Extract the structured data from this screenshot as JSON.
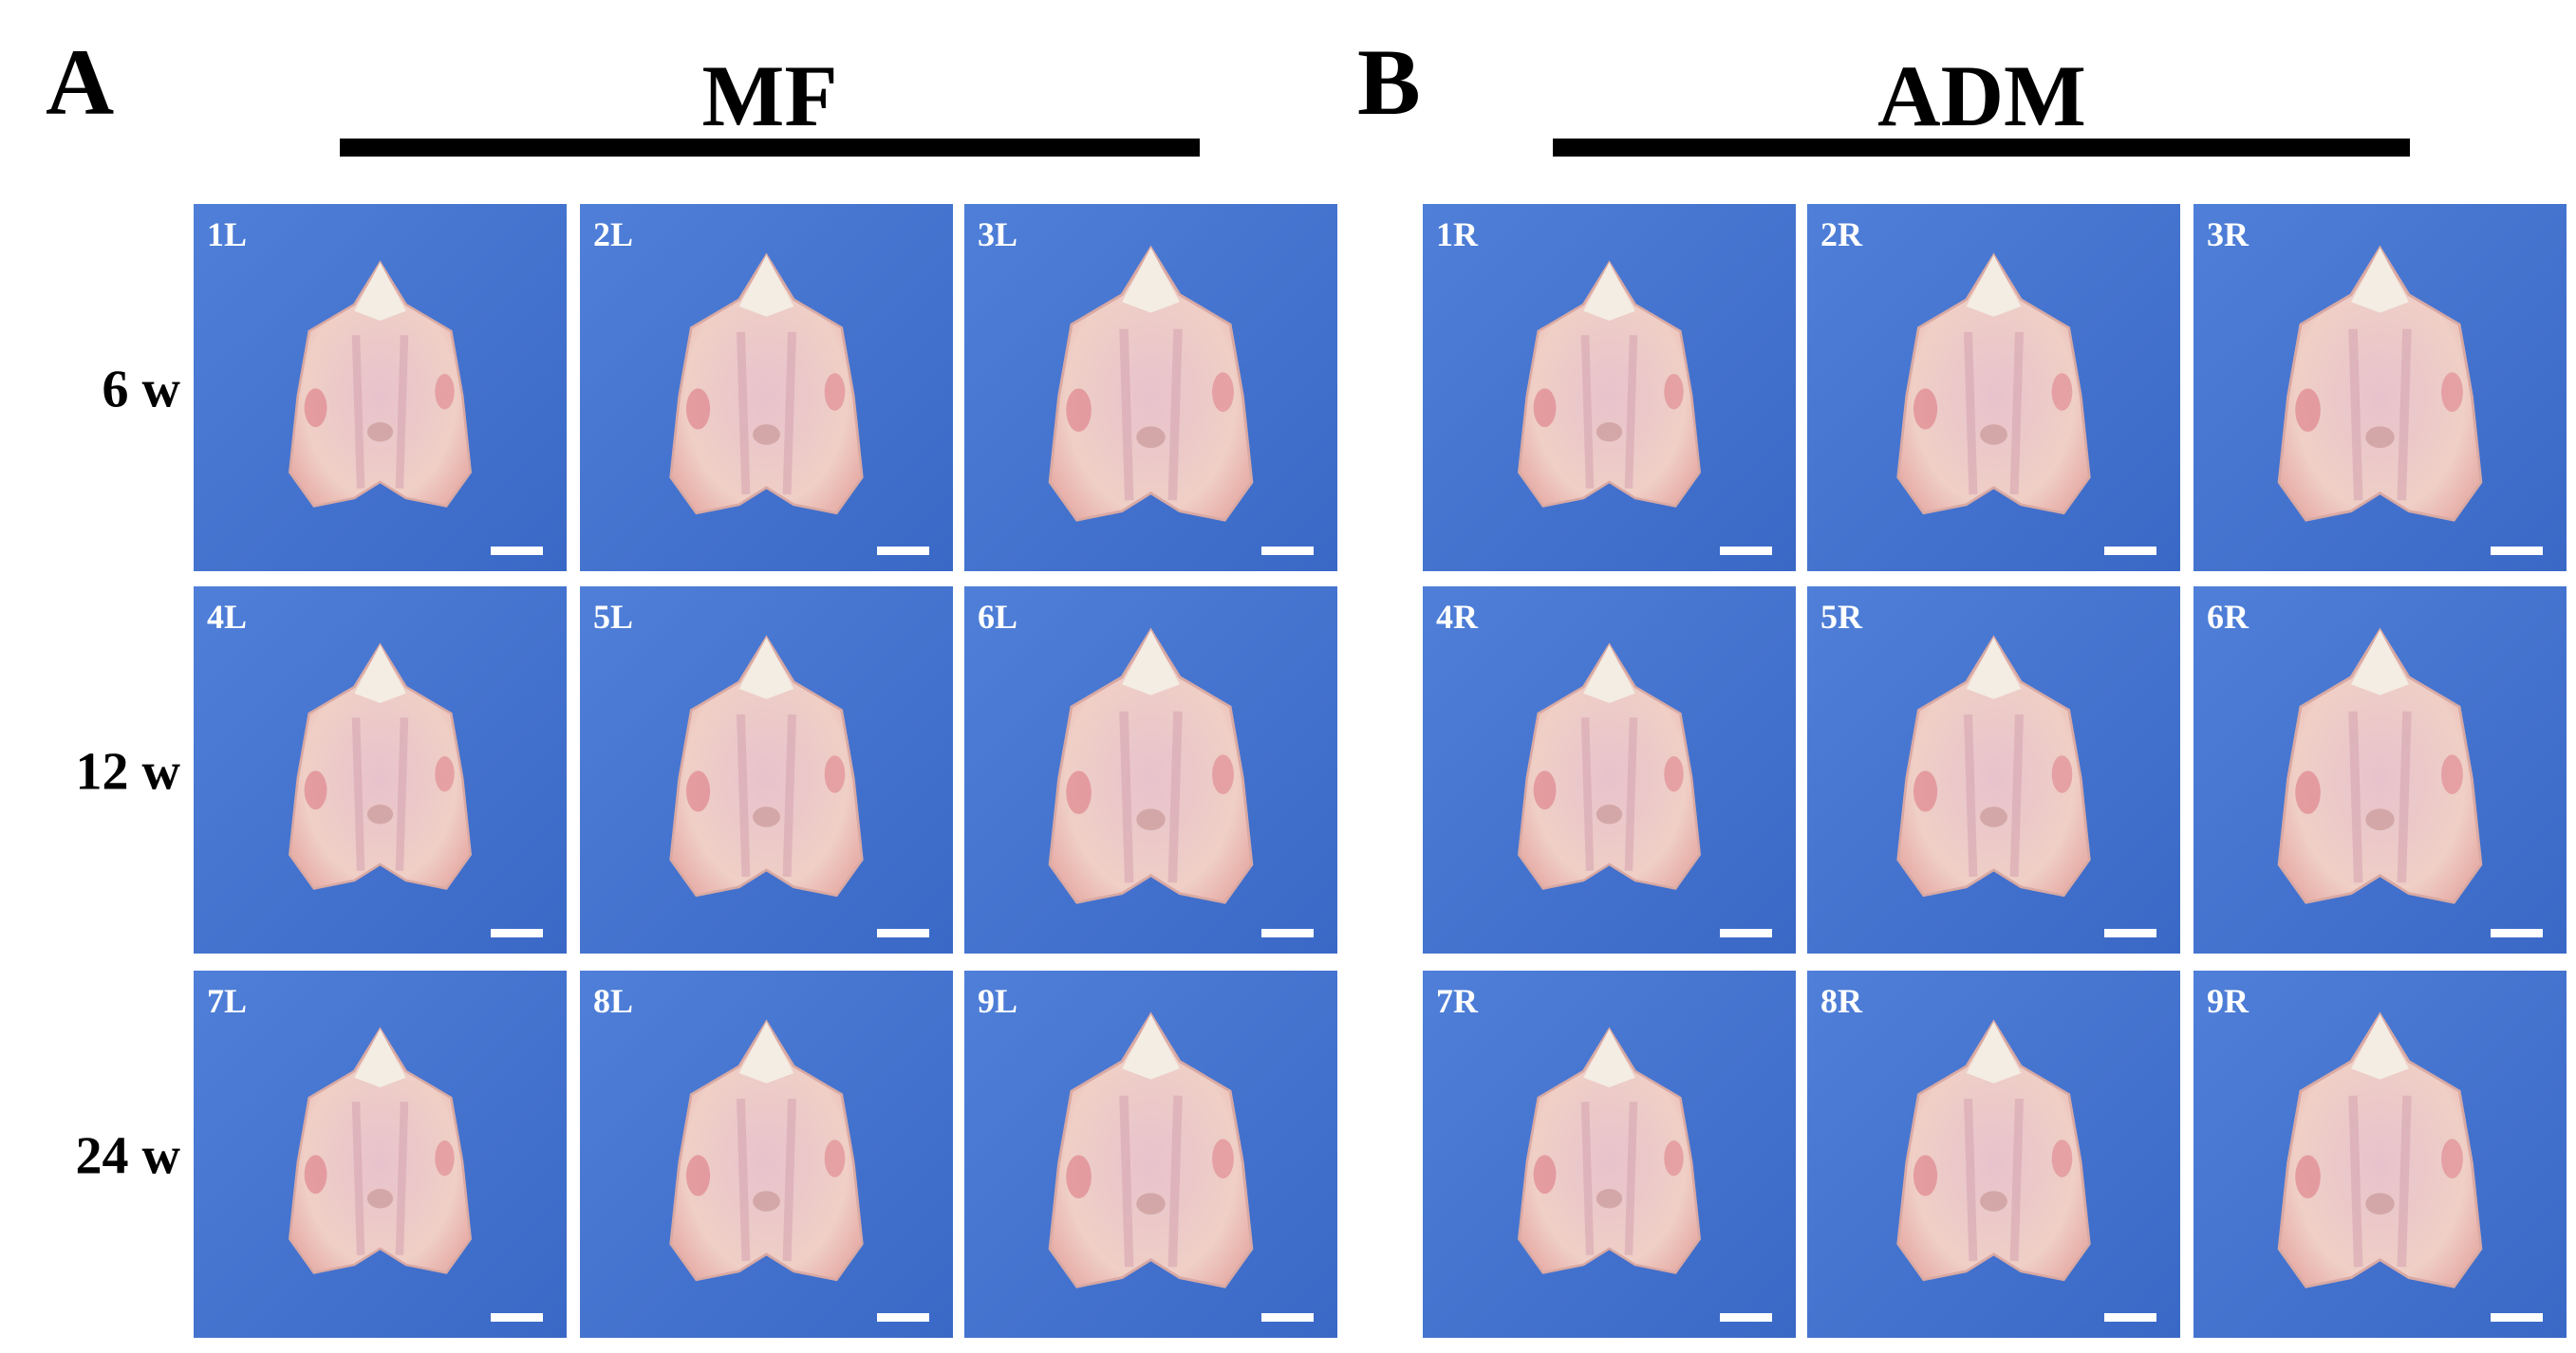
{
  "row_labels": [
    "6 w",
    "12 w",
    "24 w"
  ],
  "panels": [
    {
      "letter": "A",
      "title": "MF",
      "tiles": [
        "1L",
        "2L",
        "3L",
        "4L",
        "5L",
        "6L",
        "7L",
        "8L",
        "9L"
      ]
    },
    {
      "letter": "B",
      "title": "ADM",
      "tiles": [
        "1R",
        "2R",
        "3R",
        "4R",
        "5R",
        "6R",
        "7R",
        "8R",
        "9R"
      ]
    }
  ]
}
